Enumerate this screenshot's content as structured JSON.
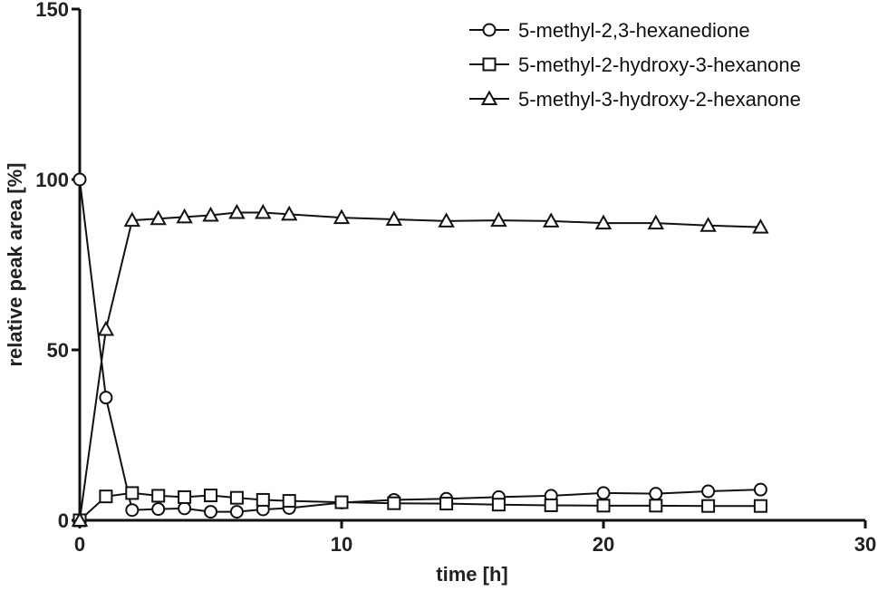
{
  "chart_data": {
    "type": "line",
    "title": "",
    "xlabel": "time [h]",
    "ylabel": "relative peak area [%]",
    "xlim": [
      0,
      30
    ],
    "ylim": [
      0,
      150
    ],
    "xticks": [
      0,
      10,
      20,
      30
    ],
    "yticks": [
      0,
      50,
      100,
      150
    ],
    "grid": false,
    "legend_position": "top-right",
    "series": [
      {
        "name": "5-methyl-2,3-hexanedione",
        "marker": "circle",
        "x": [
          0,
          1,
          2,
          3,
          4,
          5,
          6,
          7,
          8,
          10,
          12,
          14,
          16,
          18,
          20,
          22,
          24,
          26
        ],
        "values": [
          100,
          36,
          3,
          3.3,
          3.5,
          2.5,
          2.5,
          3.2,
          3.6,
          5.2,
          6,
          6.3,
          6.8,
          7.2,
          8,
          7.8,
          8.5,
          9
        ]
      },
      {
        "name": "5-methyl-2-hydroxy-3-hexanone",
        "marker": "square",
        "x": [
          0,
          1,
          2,
          3,
          4,
          5,
          6,
          7,
          8,
          10,
          12,
          14,
          16,
          18,
          20,
          22,
          24,
          26
        ],
        "values": [
          0,
          7,
          8,
          7.2,
          6.8,
          7.3,
          6.6,
          6,
          5.7,
          5.3,
          5,
          4.9,
          4.6,
          4.4,
          4.3,
          4.3,
          4.2,
          4.2
        ]
      },
      {
        "name": "5-methyl-3-hydroxy-2-hexanone",
        "marker": "triangle",
        "x": [
          0,
          1,
          2,
          3,
          4,
          5,
          6,
          7,
          8,
          10,
          12,
          14,
          16,
          18,
          20,
          22,
          24,
          26
        ],
        "values": [
          0,
          56,
          88,
          88.5,
          89,
          89.5,
          90.3,
          90.3,
          89.8,
          88.8,
          88.3,
          87.8,
          88,
          87.8,
          87.2,
          87.2,
          86.5,
          86
        ]
      }
    ]
  }
}
